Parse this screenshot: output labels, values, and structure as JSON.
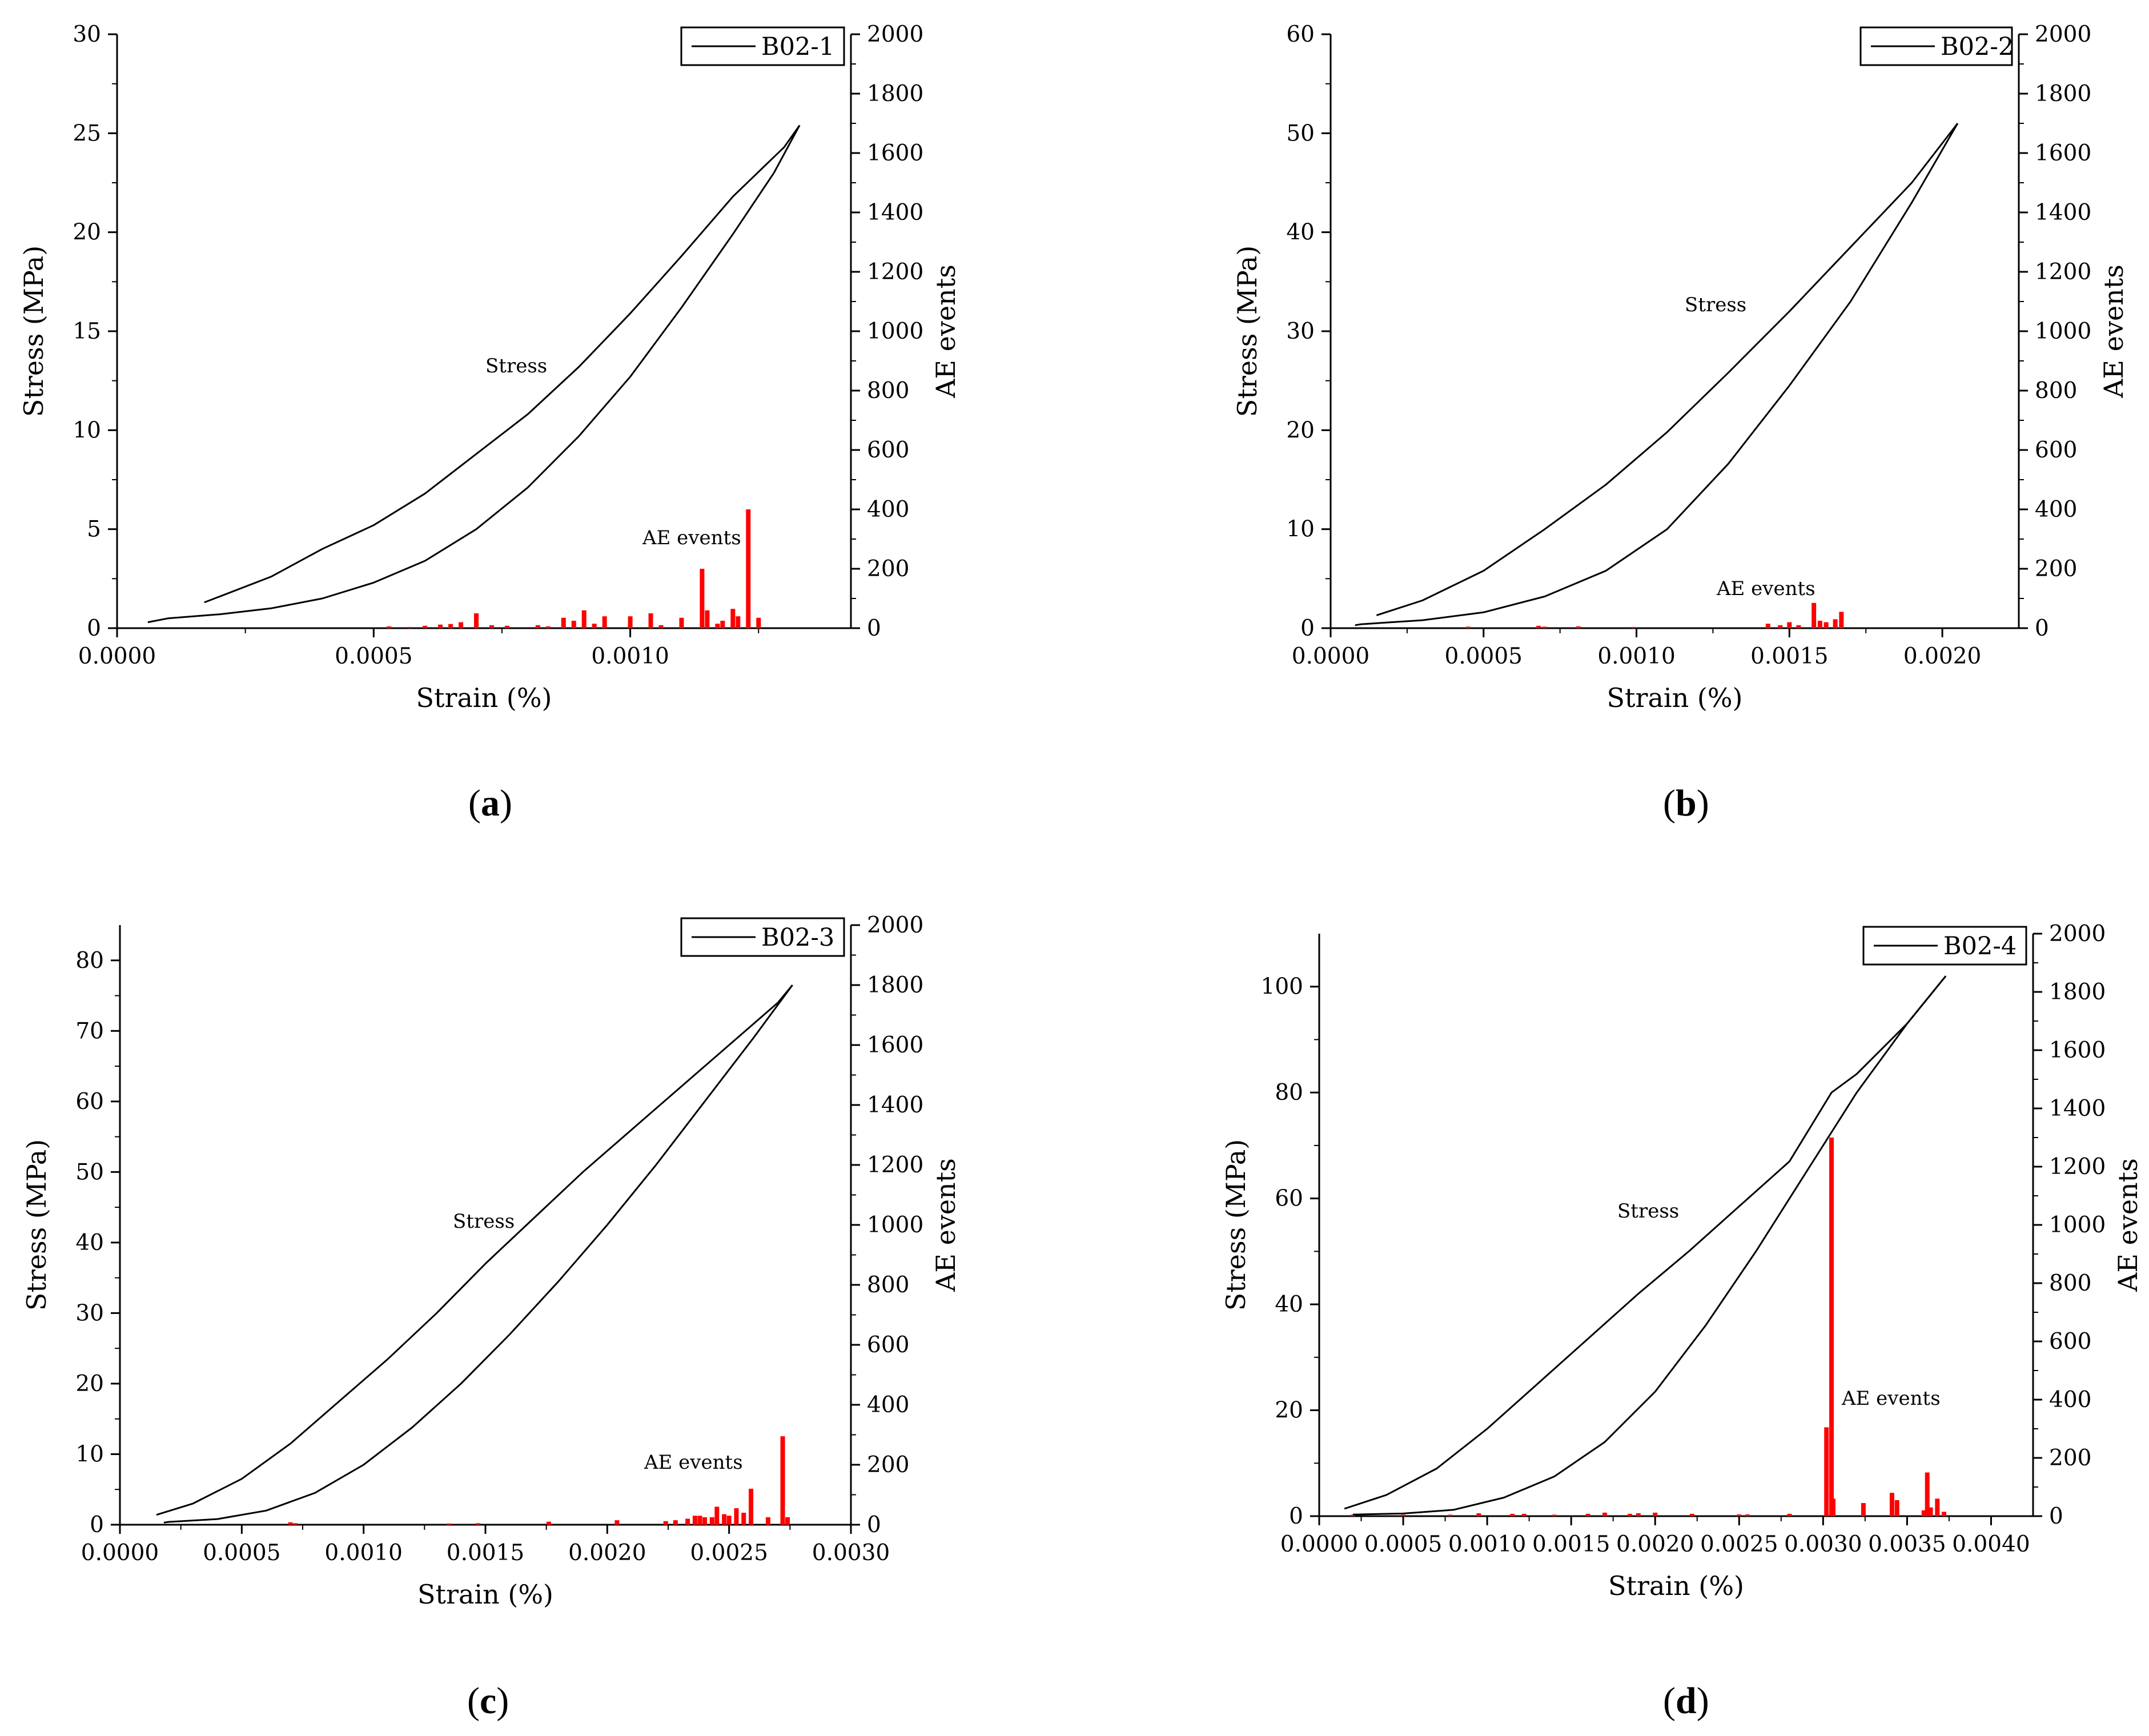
{
  "chart_data": [
    {
      "panel": "a",
      "type": "line",
      "legend": "B02-1",
      "xlabel": "Strain (%)",
      "ylabel": "Stress (MPa)",
      "y2label": "AE events",
      "xlim": [
        0,
        0.00143
      ],
      "ylim": [
        0,
        30
      ],
      "y2lim": [
        0,
        2000
      ],
      "xticks": [
        0,
        0.0005,
        0.001
      ],
      "xtick_labels": [
        "0.0000",
        "0.0005",
        "0.0010"
      ],
      "yticks": [
        0,
        5,
        10,
        15,
        20,
        25,
        30
      ],
      "y2ticks": [
        0,
        200,
        400,
        600,
        800,
        1000,
        1200,
        1400,
        1600,
        1800,
        2000
      ],
      "stress_label": "Stress",
      "ae_label": "AE events",
      "loading": [
        [
          0.00017,
          1.3
        ],
        [
          0.0003,
          2.6
        ],
        [
          0.0004,
          4.0
        ],
        [
          0.0005,
          5.2
        ],
        [
          0.0006,
          6.8
        ],
        [
          0.0007,
          8.8
        ],
        [
          0.0008,
          10.8
        ],
        [
          0.0009,
          13.2
        ],
        [
          0.001,
          15.9
        ],
        [
          0.0011,
          18.8
        ],
        [
          0.0012,
          21.8
        ],
        [
          0.0013,
          24.3
        ],
        [
          0.00133,
          25.4
        ]
      ],
      "unloading": [
        [
          0.00133,
          25.4
        ],
        [
          0.00128,
          23.0
        ],
        [
          0.0012,
          19.9
        ],
        [
          0.0011,
          16.2
        ],
        [
          0.001,
          12.7
        ],
        [
          0.0009,
          9.7
        ],
        [
          0.0008,
          7.1
        ],
        [
          0.0007,
          5.0
        ],
        [
          0.0006,
          3.4
        ],
        [
          0.0005,
          2.3
        ],
        [
          0.0004,
          1.5
        ],
        [
          0.0003,
          1.0
        ],
        [
          0.0002,
          0.7
        ],
        [
          0.0001,
          0.5
        ],
        [
          6e-05,
          0.3
        ]
      ],
      "ae_events": [
        [
          0.00053,
          6
        ],
        [
          0.00057,
          4
        ],
        [
          0.0006,
          8
        ],
        [
          0.00063,
          12
        ],
        [
          0.00065,
          14
        ],
        [
          0.00067,
          20
        ],
        [
          0.0007,
          50
        ],
        [
          0.00073,
          10
        ],
        [
          0.00076,
          8
        ],
        [
          0.00082,
          10
        ],
        [
          0.00084,
          6
        ],
        [
          0.00087,
          35
        ],
        [
          0.00089,
          25
        ],
        [
          0.00091,
          60
        ],
        [
          0.00093,
          15
        ],
        [
          0.00095,
          40
        ],
        [
          0.001,
          40
        ],
        [
          0.00104,
          50
        ],
        [
          0.00106,
          10
        ],
        [
          0.0011,
          35
        ],
        [
          0.00114,
          200
        ],
        [
          0.00115,
          60
        ],
        [
          0.00117,
          15
        ],
        [
          0.00118,
          25
        ],
        [
          0.0012,
          65
        ],
        [
          0.00121,
          40
        ],
        [
          0.00123,
          400
        ],
        [
          0.00125,
          35
        ]
      ]
    },
    {
      "panel": "b",
      "type": "line",
      "legend": "B02-2",
      "xlabel": "Strain (%)",
      "ylabel": "Stress (MPa)",
      "y2label": "AE events",
      "xlim": [
        0,
        0.00225
      ],
      "ylim": [
        0,
        60
      ],
      "y2lim": [
        0,
        2000
      ],
      "xticks": [
        0,
        0.0005,
        0.001,
        0.0015,
        0.002
      ],
      "xtick_labels": [
        "0.0000",
        "0.0005",
        "0.0010",
        "0.0015",
        "0.0020"
      ],
      "yticks": [
        0,
        10,
        20,
        30,
        40,
        50,
        60
      ],
      "y2ticks": [
        0,
        200,
        400,
        600,
        800,
        1000,
        1200,
        1400,
        1600,
        1800,
        2000
      ],
      "stress_label": "Stress",
      "ae_label": "AE events",
      "loading": [
        [
          0.00015,
          1.3
        ],
        [
          0.0003,
          2.8
        ],
        [
          0.0005,
          5.8
        ],
        [
          0.0007,
          10.0
        ],
        [
          0.0009,
          14.5
        ],
        [
          0.0011,
          19.8
        ],
        [
          0.0013,
          25.8
        ],
        [
          0.0015,
          32.0
        ],
        [
          0.0017,
          38.5
        ],
        [
          0.0019,
          45.0
        ],
        [
          0.00205,
          51.0
        ]
      ],
      "unloading": [
        [
          0.00205,
          51.0
        ],
        [
          0.0019,
          43.0
        ],
        [
          0.0017,
          33.0
        ],
        [
          0.0015,
          24.5
        ],
        [
          0.0013,
          16.6
        ],
        [
          0.0011,
          10.0
        ],
        [
          0.0009,
          5.8
        ],
        [
          0.0007,
          3.2
        ],
        [
          0.0005,
          1.6
        ],
        [
          0.0003,
          0.8
        ],
        [
          0.0001,
          0.4
        ],
        [
          8e-05,
          0.3
        ]
      ],
      "ae_events": [
        [
          0.00045,
          5
        ],
        [
          0.00068,
          8
        ],
        [
          0.0007,
          5
        ],
        [
          0.00081,
          6
        ],
        [
          0.00099,
          4
        ],
        [
          0.00143,
          15
        ],
        [
          0.00147,
          10
        ],
        [
          0.0015,
          20
        ],
        [
          0.00153,
          10
        ],
        [
          0.00158,
          85
        ],
        [
          0.0016,
          25
        ],
        [
          0.00162,
          20
        ],
        [
          0.00165,
          30
        ],
        [
          0.00167,
          55
        ]
      ]
    },
    {
      "panel": "c",
      "type": "line",
      "legend": "B02-3",
      "xlabel": "Strain (%)",
      "ylabel": "Stress (MPa)",
      "y2label": "AE events",
      "xlim": [
        0,
        0.003
      ],
      "ylim": [
        0,
        85
      ],
      "y2lim": [
        0,
        2000
      ],
      "xticks": [
        0,
        0.0005,
        0.001,
        0.0015,
        0.002,
        0.0025,
        0.003
      ],
      "xtick_labels": [
        "0.0000",
        "0.0005",
        "0.0010",
        "0.0015",
        "0.0020",
        "0.0025",
        "0.0030"
      ],
      "yticks": [
        0,
        10,
        20,
        30,
        40,
        50,
        60,
        70,
        80
      ],
      "y2ticks": [
        0,
        200,
        400,
        600,
        800,
        1000,
        1200,
        1400,
        1600,
        1800,
        2000
      ],
      "stress_label": "Stress",
      "ae_label": "AE events",
      "loading": [
        [
          0.00015,
          1.4
        ],
        [
          0.0003,
          3.0
        ],
        [
          0.0005,
          6.5
        ],
        [
          0.0007,
          11.5
        ],
        [
          0.0009,
          17.5
        ],
        [
          0.0011,
          23.5
        ],
        [
          0.0013,
          30.0
        ],
        [
          0.0015,
          37.0
        ],
        [
          0.0017,
          43.5
        ],
        [
          0.0019,
          50.0
        ],
        [
          0.0021,
          56.0
        ],
        [
          0.0023,
          62.0
        ],
        [
          0.0025,
          68.0
        ],
        [
          0.0027,
          74.0
        ],
        [
          0.00276,
          76.5
        ]
      ],
      "unloading": [
        [
          0.00276,
          76.5
        ],
        [
          0.0026,
          69.0
        ],
        [
          0.0024,
          60.0
        ],
        [
          0.0022,
          51.0
        ],
        [
          0.002,
          42.5
        ],
        [
          0.0018,
          34.5
        ],
        [
          0.0016,
          27.0
        ],
        [
          0.0014,
          20.0
        ],
        [
          0.0012,
          13.8
        ],
        [
          0.001,
          8.5
        ],
        [
          0.0008,
          4.5
        ],
        [
          0.0006,
          2.0
        ],
        [
          0.0004,
          0.8
        ],
        [
          0.0002,
          0.4
        ],
        [
          0.00018,
          0.3
        ]
      ],
      "ae_events": [
        [
          0.0007,
          8
        ],
        [
          0.00072,
          5
        ],
        [
          0.00135,
          4
        ],
        [
          0.00147,
          5
        ],
        [
          0.00176,
          10
        ],
        [
          0.00204,
          15
        ],
        [
          0.00224,
          12
        ],
        [
          0.00228,
          15
        ],
        [
          0.00233,
          20
        ],
        [
          0.00236,
          30
        ],
        [
          0.00238,
          30
        ],
        [
          0.0024,
          25
        ],
        [
          0.00243,
          25
        ],
        [
          0.00245,
          60
        ],
        [
          0.00248,
          35
        ],
        [
          0.0025,
          30
        ],
        [
          0.00253,
          55
        ],
        [
          0.00256,
          40
        ],
        [
          0.00259,
          120
        ],
        [
          0.00266,
          25
        ],
        [
          0.00272,
          295
        ],
        [
          0.00274,
          25
        ]
      ]
    },
    {
      "panel": "d",
      "type": "line",
      "legend": "B02-4",
      "xlabel": "Strain (%)",
      "ylabel": "Stress (MPa)",
      "y2label": "AE events",
      "xlim": [
        0,
        0.00425
      ],
      "ylim": [
        0,
        110
      ],
      "y2lim": [
        0,
        2000
      ],
      "xticks": [
        0,
        0.0005,
        0.001,
        0.0015,
        0.002,
        0.0025,
        0.003,
        0.0035,
        0.004
      ],
      "xtick_labels": [
        "0.0000",
        "0.0005",
        "0.0010",
        "0.0015",
        "0.0020",
        "0.0025",
        "0.0030",
        "0.0035",
        "0.0040"
      ],
      "yticks": [
        0,
        20,
        40,
        60,
        80,
        100
      ],
      "y2ticks": [
        0,
        200,
        400,
        600,
        800,
        1000,
        1200,
        1400,
        1600,
        1800,
        2000
      ],
      "stress_label": "Stress",
      "ae_label": "AE events",
      "loading": [
        [
          0.00015,
          1.4
        ],
        [
          0.0004,
          4.0
        ],
        [
          0.0007,
          9.0
        ],
        [
          0.001,
          16.5
        ],
        [
          0.0013,
          25.0
        ],
        [
          0.0016,
          33.5
        ],
        [
          0.0019,
          42.0
        ],
        [
          0.0022,
          50.0
        ],
        [
          0.0025,
          58.5
        ],
        [
          0.0028,
          67.0
        ],
        [
          0.00305,
          80.0
        ],
        [
          0.0032,
          83.5
        ],
        [
          0.0035,
          93.0
        ],
        [
          0.00373,
          102.0
        ]
      ],
      "unloading": [
        [
          0.00373,
          102.0
        ],
        [
          0.0035,
          93.0
        ],
        [
          0.0032,
          80.0
        ],
        [
          0.0029,
          65.0
        ],
        [
          0.0026,
          50.0
        ],
        [
          0.0023,
          36.0
        ],
        [
          0.002,
          23.5
        ],
        [
          0.0017,
          14.0
        ],
        [
          0.0014,
          7.5
        ],
        [
          0.0011,
          3.5
        ],
        [
          0.0008,
          1.2
        ],
        [
          0.0005,
          0.5
        ],
        [
          0.0002,
          0.3
        ]
      ],
      "ae_events": [
        [
          0.0002,
          5
        ],
        [
          0.0005,
          5
        ],
        [
          0.00078,
          5
        ],
        [
          0.00095,
          10
        ],
        [
          0.00115,
          8
        ],
        [
          0.00122,
          8
        ],
        [
          0.0014,
          5
        ],
        [
          0.0016,
          8
        ],
        [
          0.0017,
          12
        ],
        [
          0.00185,
          8
        ],
        [
          0.0019,
          10
        ],
        [
          0.002,
          12
        ],
        [
          0.00222,
          8
        ],
        [
          0.0025,
          6
        ],
        [
          0.00255,
          6
        ],
        [
          0.0028,
          8
        ],
        [
          0.00302,
          305
        ],
        [
          0.00305,
          1300
        ],
        [
          0.00306,
          60
        ],
        [
          0.00324,
          45
        ],
        [
          0.00341,
          80
        ],
        [
          0.00344,
          55
        ],
        [
          0.0036,
          20
        ],
        [
          0.00362,
          150
        ],
        [
          0.00364,
          30
        ],
        [
          0.00368,
          60
        ],
        [
          0.00372,
          15
        ]
      ]
    }
  ],
  "panel_labels": {
    "a": {
      "open": "(",
      "letter": "a",
      "close": ")"
    },
    "b": {
      "open": "(",
      "letter": "b",
      "close": ")"
    },
    "c": {
      "open": "(",
      "letter": "c",
      "close": ")"
    },
    "d": {
      "open": "(",
      "letter": "d",
      "close": ")"
    }
  },
  "colors": {
    "stress_line": "#000000",
    "ae_bars": "#ff0000",
    "axes": "#000000"
  }
}
